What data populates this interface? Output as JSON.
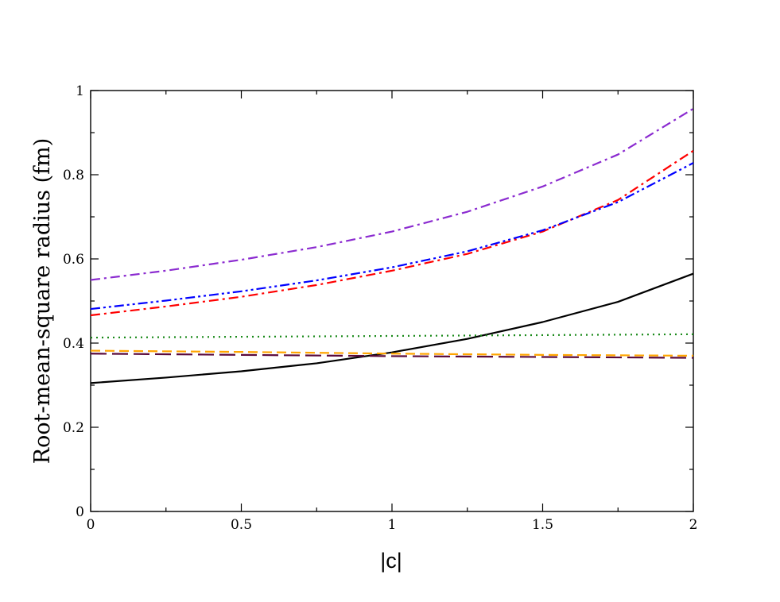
{
  "chart_data": {
    "type": "line",
    "xlabel": "|c|",
    "ylabel": "Root-mean-square radius (fm)",
    "xlim": [
      0,
      2
    ],
    "ylim": [
      0,
      1
    ],
    "x_ticks": [
      0,
      0.5,
      1,
      1.5,
      2
    ],
    "x_tick_labels": [
      "0",
      "0.5",
      "1",
      "1.5",
      "2"
    ],
    "y_ticks": [
      0,
      0.2,
      0.4,
      0.6,
      0.8,
      1
    ],
    "y_tick_labels": [
      "0",
      "0.2",
      "0.4",
      "0.6",
      "0.8",
      "1"
    ],
    "grid": false,
    "legend": false,
    "series": [
      {
        "color": "#000000",
        "dash": "solid",
        "x": [
          0,
          0.25,
          0.5,
          0.75,
          1.0,
          1.25,
          1.5,
          1.75,
          2.0
        ],
        "y": [
          0.305,
          0.318,
          0.333,
          0.352,
          0.378,
          0.41,
          0.45,
          0.498,
          0.565
        ]
      },
      {
        "color": "#8b2bd0",
        "dash": "dashdot",
        "x": [
          0,
          0.25,
          0.5,
          0.75,
          1.0,
          1.25,
          1.5,
          1.75,
          2.0
        ],
        "y": [
          0.55,
          0.572,
          0.598,
          0.628,
          0.665,
          0.712,
          0.772,
          0.848,
          0.957
        ]
      },
      {
        "color": "#ff0000",
        "dash": "dashdot",
        "x": [
          0,
          0.25,
          0.5,
          0.75,
          1.0,
          1.25,
          1.5,
          1.75,
          2.0
        ],
        "y": [
          0.466,
          0.487,
          0.51,
          0.538,
          0.572,
          0.612,
          0.665,
          0.74,
          0.857
        ]
      },
      {
        "color": "#0000ff",
        "dash": "dashdotdot",
        "x": [
          0,
          0.25,
          0.5,
          0.75,
          1.0,
          1.25,
          1.5,
          1.75,
          2.0
        ],
        "y": [
          0.481,
          0.501,
          0.523,
          0.549,
          0.58,
          0.618,
          0.668,
          0.735,
          0.828
        ]
      },
      {
        "color": "#1a8a1a",
        "dash": "dotted",
        "x": [
          0,
          0.5,
          1.0,
          1.5,
          2.0
        ],
        "y": [
          0.413,
          0.415,
          0.417,
          0.419,
          0.421
        ]
      },
      {
        "color": "#ffa500",
        "dash": "dashed",
        "x": [
          0,
          0.5,
          1.0,
          1.5,
          2.0
        ],
        "y": [
          0.382,
          0.379,
          0.375,
          0.372,
          0.37
        ]
      },
      {
        "color": "#5a0a3c",
        "dash": "longdash",
        "x": [
          0,
          0.5,
          1.0,
          1.5,
          2.0
        ],
        "y": [
          0.375,
          0.372,
          0.369,
          0.367,
          0.365
        ]
      }
    ]
  }
}
